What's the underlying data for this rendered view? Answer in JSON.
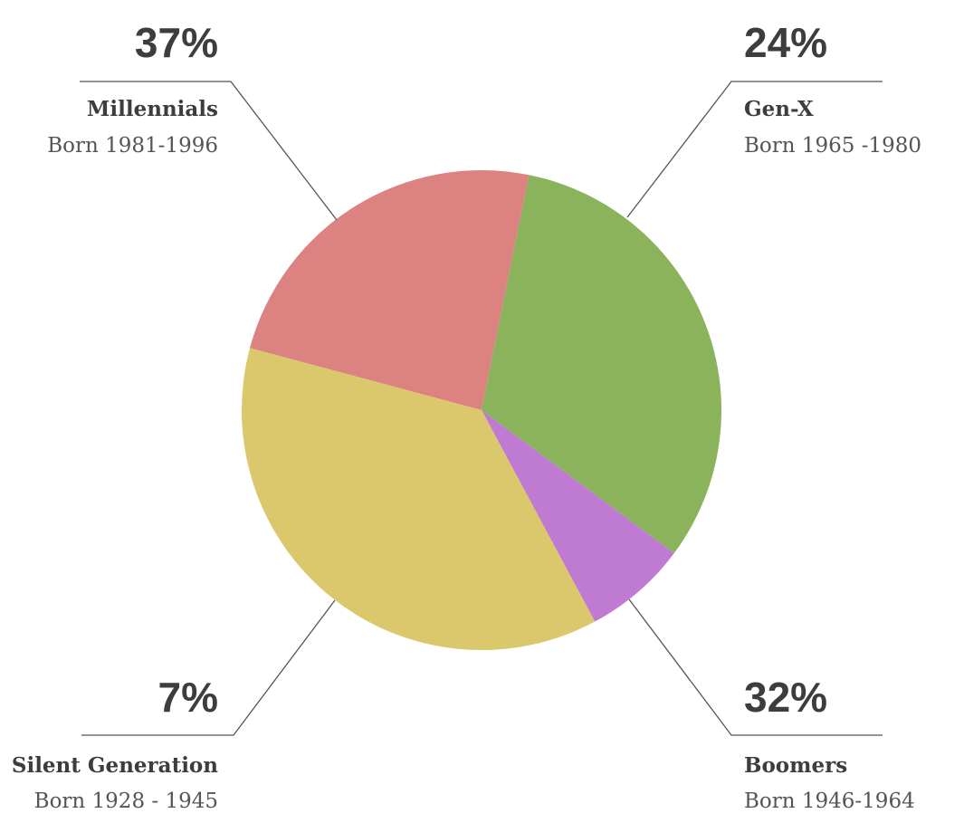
{
  "chart_data": {
    "type": "pie",
    "start_order": [
      "Gen-X",
      "Boomers",
      "Silent Generation",
      "Millennials"
    ],
    "slices": [
      {
        "label": "Gen-X",
        "percent_label": "24%",
        "subtitle": "Born  1965 -1980",
        "value": 24,
        "color": "#dc8281"
      },
      {
        "label": "Boomers",
        "percent_label": "32%",
        "subtitle": "Born  1946-1964",
        "value": 32,
        "color": "#8bb35c"
      },
      {
        "label": "Silent Generation",
        "percent_label": "7%",
        "subtitle": "Born 1928 - 1945",
        "value": 7,
        "color": "#bf7bd1"
      },
      {
        "label": "Millennials",
        "percent_label": "37%",
        "subtitle": "Born 1981-1996",
        "value": 37,
        "color": "#dbc86c"
      }
    ]
  }
}
